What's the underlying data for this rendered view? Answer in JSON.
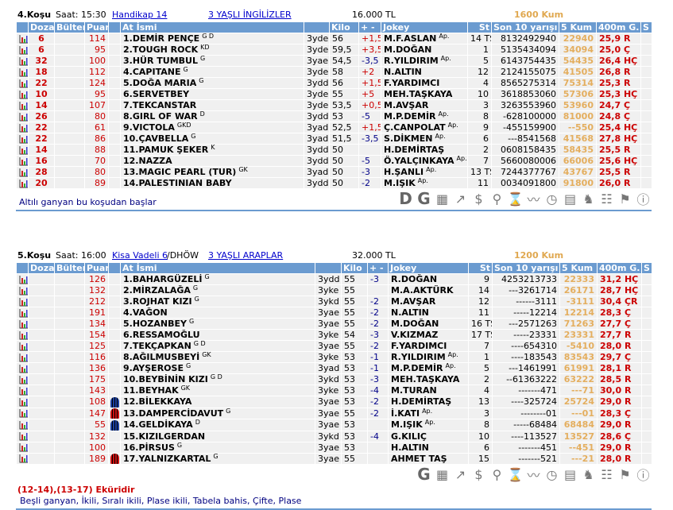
{
  "columns": [
    "",
    "Dozaj",
    "Bülten",
    "Puan",
    "",
    "At İsmi",
    "",
    "Kilo",
    "+ -",
    "Jokey",
    "St",
    "Son 10 yarışı",
    "5 Kum",
    "400m G.",
    "S"
  ],
  "races": [
    {
      "no": "4.Koşu",
      "time": "Saat: 15:30",
      "type": "Handikap  14",
      "cond": "3 YAŞLI İNGİLİZLER",
      "prize": "16.000 TL",
      "track": "1600 Kum",
      "note": "Altılı ganyan bu koşudan başlar",
      "tools": [
        "D",
        "G",
        "▦",
        "↗",
        "$",
        "⚲",
        "⌛",
        "〰",
        "◷",
        "▤",
        "♞",
        "☷",
        "⚑",
        "ⓘ"
      ],
      "rows": [
        {
          "d": "6",
          "p": "114",
          "n": "1.DEMİR PENÇE",
          "s": "G D",
          "a": "3yde",
          "k": "56",
          "pm": "+1,5",
          "j": "M.F.ASLAN",
          "js": "Ap.",
          "st": "14 TS",
          "l": "8132492940",
          "k5": "22940",
          "g": "25,9 R"
        },
        {
          "d": "6",
          "p": "95",
          "n": "2.TOUGH ROCK",
          "s": "KD",
          "a": "3yde",
          "k": "59,5",
          "pm": "+3,5",
          "j": "M.DOĞAN",
          "js": "",
          "st": "1",
          "l": "5135434094",
          "k5": "34094",
          "g": "25,0 Ç"
        },
        {
          "d": "32",
          "p": "100",
          "n": "3.HÜR TUMBUL",
          "s": "G",
          "a": "3yae",
          "k": "54,5",
          "pm": "-3,5",
          "j": "R.YILDIRIM",
          "js": "Ap.",
          "st": "5",
          "l": "6143754435",
          "k5": "54435",
          "g": "26,4 HÇ"
        },
        {
          "d": "18",
          "p": "112",
          "n": "4.CAPITANE",
          "s": "G",
          "a": "3yde",
          "k": "58",
          "pm": "+2",
          "j": "N.ALTIN",
          "js": "",
          "st": "12",
          "l": "2124155075",
          "k5": "41505",
          "g": "26,8 R"
        },
        {
          "d": "22",
          "p": "124",
          "n": "5.DOĞA MARIA",
          "s": "G",
          "a": "3ydd",
          "k": "56",
          "pm": "+1,5",
          "j": "F.YARDIMCI",
          "js": "",
          "st": "4",
          "l": "8565275314",
          "k5": "75314",
          "g": "25,3 R"
        },
        {
          "d": "10",
          "p": "95",
          "n": "6.SERVETBEY",
          "s": "",
          "a": "3yde",
          "k": "55",
          "pm": "+5",
          "j": "MEH.TAŞKAYA",
          "js": "",
          "st": "10",
          "l": "3618853060",
          "k5": "57306",
          "g": "25,3 HÇ"
        },
        {
          "d": "14",
          "p": "107",
          "n": "7.TEKCANSTAR",
          "s": "",
          "a": "3yde",
          "k": "53,5",
          "pm": "+0,5",
          "j": "M.AVŞAR",
          "js": "",
          "st": "3",
          "l": "3263553960",
          "k5": "53960",
          "g": "24,7 Ç"
        },
        {
          "d": "26",
          "p": "80",
          "n": "8.GIRL OF WAR",
          "s": "D",
          "a": "3ydd",
          "k": "53",
          "pm": "-5",
          "j": "M.P.DEMİR",
          "js": "Ap.",
          "st": "8",
          "l": "-628100000",
          "k5": "81000",
          "g": "24,8 Ç"
        },
        {
          "d": "22",
          "p": "61",
          "n": "9.VICTOLA",
          "s": "GKD",
          "a": "3yad",
          "k": "52,5",
          "pm": "+1,5",
          "j": "Ç.CANPOLAT",
          "js": "Ap.",
          "st": "9",
          "l": "-455159900",
          "k5": "--550",
          "g": "25,4 HÇ"
        },
        {
          "d": "22",
          "p": "86",
          "n": "10.ÇAVBELLA",
          "s": "G",
          "a": "3yad",
          "k": "51,5",
          "pm": "-3,5",
          "j": "S.DİKMEN",
          "js": "Ap.",
          "st": "6",
          "l": "---8541568",
          "k5": "41568",
          "g": "27,8 HÇ"
        },
        {
          "d": "14",
          "p": "88",
          "n": "11.PAMUK ŞEKER",
          "s": "K",
          "a": "3ydd",
          "k": "50",
          "pm": "",
          "j": "H.DEMİRTAŞ",
          "js": "",
          "st": "2",
          "l": "0608158435",
          "k5": "58435",
          "g": "25,5 R"
        },
        {
          "d": "16",
          "p": "70",
          "n": "12.NAZZA",
          "s": "",
          "a": "3ydd",
          "k": "50",
          "pm": "-5",
          "j": "Ö.YALÇINKAYA",
          "js": "Ap.",
          "st": "7",
          "l": "5660080006",
          "k5": "66006",
          "g": "25,6 HÇ"
        },
        {
          "d": "28",
          "p": "80",
          "n": "13.MAGIC PEARL (TUR)",
          "s": "GK",
          "a": "3yad",
          "k": "50",
          "pm": "-3",
          "j": "H.ŞANLI",
          "js": "Ap.",
          "st": "13 TS",
          "l": "7244377767",
          "k5": "43767",
          "g": "25,5 R"
        },
        {
          "d": "20",
          "p": "89",
          "n": "14.PALESTINIAN BABY",
          "s": "",
          "a": "3ydd",
          "k": "50",
          "pm": "-2",
          "j": "M.IŞIK",
          "js": "Ap.",
          "st": "11",
          "l": "0034091800",
          "k5": "91800",
          "g": "26,0 R"
        }
      ]
    },
    {
      "no": "5.Koşu",
      "time": "Saat: 16:00",
      "type": "Kisa Vadeli  6",
      "type_suffix": "/DHÖW",
      "cond": "3 YAŞLI ARAPLAR",
      "prize": "32.000 TL",
      "track": "1200 Kum",
      "ekur": "(12-14),(13-17) Eküridir",
      "bets": "Beşli ganyan, İkili, Sıralı ikili, Plase ikili, Tabela bahis, Çifte, Plase",
      "tools": [
        "G",
        "▦",
        "↗",
        "$",
        "⚲",
        "⌛",
        "〰",
        "◷",
        "▤",
        "♞",
        "☷",
        "⚑",
        "ⓘ"
      ],
      "rows": [
        {
          "d": "",
          "p": "126",
          "n": "1.BAHARGÜZELİ",
          "s": "G",
          "a": "3ydd",
          "k": "55",
          "pm": "-3",
          "j": "R.DOĞAN",
          "js": "",
          "st": "9",
          "l": "4253213733",
          "k5": "22333",
          "g": "31,2 HÇ"
        },
        {
          "d": "",
          "p": "132",
          "n": "2.MİRZALAĞA",
          "s": "G",
          "a": "3yke",
          "k": "55",
          "pm": "",
          "j": "M.A.AKTÜRK",
          "js": "",
          "st": "14",
          "l": "---3261714",
          "k5": "26171",
          "g": "28,7 HÇ"
        },
        {
          "d": "",
          "p": "212",
          "n": "3.ROJHAT KIZI",
          "s": "G",
          "a": "3ykd",
          "k": "55",
          "pm": "-2",
          "j": "M.AVŞAR",
          "js": "",
          "st": "12",
          "l": "------3111",
          "k5": "-3111",
          "g": "30,4 ÇR"
        },
        {
          "d": "",
          "p": "191",
          "n": "4.VAĞON",
          "s": "",
          "a": "3yae",
          "k": "55",
          "pm": "-2",
          "j": "N.ALTIN",
          "js": "",
          "st": "11",
          "l": "-----12214",
          "k5": "12214",
          "g": "28,3 Ç"
        },
        {
          "d": "",
          "p": "134",
          "n": "5.HOZANBEY",
          "s": "G",
          "a": "3yae",
          "k": "55",
          "pm": "-2",
          "j": "M.DOĞAN",
          "js": "",
          "st": "16 TS",
          "l": "---2571263",
          "k5": "71263",
          "g": "27,7 Ç"
        },
        {
          "d": "",
          "p": "154",
          "n": "6.RESSAMOĞLU",
          "s": "",
          "a": "3yke",
          "k": "54",
          "pm": "-3",
          "j": "V.KIZMAZ",
          "js": "",
          "st": "17 TS",
          "l": "-----23331",
          "k5": "23331",
          "g": "27,7 R"
        },
        {
          "d": "",
          "p": "125",
          "n": "7.TEKÇAPKAN",
          "s": "G D",
          "a": "3yae",
          "k": "55",
          "pm": "-2",
          "j": "F.YARDIMCI",
          "js": "",
          "st": "7",
          "l": "----654310",
          "k5": "-5410",
          "g": "28,0 R"
        },
        {
          "d": "",
          "p": "116",
          "n": "8.AĞILMUSBEYİ",
          "s": "GK",
          "a": "3yke",
          "k": "53",
          "pm": "-1",
          "j": "R.YILDIRIM",
          "js": "Ap.",
          "st": "1",
          "l": "----183543",
          "k5": "83543",
          "g": "29,7 Ç"
        },
        {
          "d": "",
          "p": "136",
          "n": "9.AYŞEROSE",
          "s": "G",
          "a": "3yad",
          "k": "53",
          "pm": "-1",
          "j": "M.P.DEMİR",
          "js": "Ap.",
          "st": "5",
          "l": "---1461991",
          "k5": "61991",
          "g": "28,1 R"
        },
        {
          "d": "",
          "p": "175",
          "n": "10.BEYBİNİN KIZI",
          "s": "G D",
          "a": "3ykd",
          "k": "53",
          "pm": "-3",
          "j": "MEH.TAŞKAYA",
          "js": "",
          "st": "2",
          "l": "--61363222",
          "k5": "63222",
          "g": "28,5 R"
        },
        {
          "d": "",
          "p": "143",
          "n": "11.BEYHAK",
          "s": "GK",
          "a": "3yke",
          "k": "53",
          "pm": "-4",
          "j": "M.TURAN",
          "js": "",
          "st": "4",
          "l": "-------471",
          "k5": "---71",
          "g": "30,0 R"
        },
        {
          "d": "",
          "p": "108",
          "silk": "#1a3fa0",
          "n": "12.BİLEKKAYA",
          "s": "",
          "a": "3yae",
          "k": "53",
          "pm": "-2",
          "j": "H.DEMİRTAŞ",
          "js": "",
          "st": "13",
          "l": "----325724",
          "k5": "25724",
          "g": "29,0 R"
        },
        {
          "d": "",
          "p": "147",
          "silk": "#cc1111",
          "n": "13.DAMPERCİDAVUT",
          "s": "G",
          "a": "3yae",
          "k": "55",
          "pm": "-2",
          "j": "İ.KATI",
          "js": "Ap.",
          "st": "3",
          "l": "--------01",
          "k5": "---01",
          "g": "28,3 Ç"
        },
        {
          "d": "",
          "p": "55",
          "silk": "#1a3fa0",
          "n": "14.GELDİKAYA",
          "s": "D",
          "a": "3yae",
          "k": "53",
          "pm": "",
          "j": "M.IŞIK",
          "js": "Ap.",
          "st": "8",
          "l": "-----68484",
          "k5": "68484",
          "g": "29,0 R"
        },
        {
          "d": "",
          "p": "132",
          "n": "15.KIZILGERDAN",
          "s": "",
          "a": "3ykd",
          "k": "53",
          "pm": "-4",
          "j": "G.KILIÇ",
          "js": "",
          "st": "10",
          "l": "----113527",
          "k5": "13527",
          "g": "28,6 Ç"
        },
        {
          "d": "",
          "p": "100",
          "n": "16.PİRSUS",
          "s": "G",
          "a": "3yae",
          "k": "53",
          "pm": "",
          "j": "H.ALTIN",
          "js": "",
          "st": "6",
          "l": "-------451",
          "k5": "--451",
          "g": "29,0 R"
        },
        {
          "d": "",
          "p": "189",
          "silk": "#cc1111",
          "n": "17.YALNIZKARTAL",
          "s": "G",
          "a": "3yae",
          "k": "55",
          "pm": "",
          "j": "AHMET TAŞ",
          "js": "",
          "st": "15",
          "l": "-------521",
          "k5": "---21",
          "g": "28,0 R"
        }
      ]
    }
  ],
  "colors": {
    "header": "#6b9bd0",
    "red": "#cc0000",
    "kum": "#e4ae5e",
    "minus": "#000088"
  }
}
